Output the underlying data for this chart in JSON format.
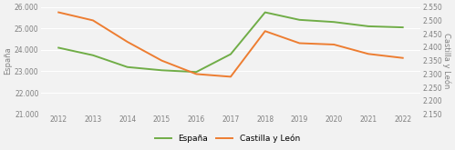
{
  "years": [
    2012,
    2013,
    2014,
    2015,
    2016,
    2017,
    2018,
    2019,
    2020,
    2021,
    2022
  ],
  "espana": [
    24100,
    23750,
    23200,
    23050,
    22970,
    23800,
    25750,
    25400,
    25300,
    25100,
    25050
  ],
  "castilla": [
    2530,
    2500,
    2420,
    2350,
    2300,
    2290,
    2460,
    2415,
    2410,
    2375,
    2360
  ],
  "espana_color": "#70ad47",
  "castilla_color": "#ed7d31",
  "ylabel_left": "España",
  "ylabel_right": "Castilla y León",
  "ylim_left": [
    21000,
    26000
  ],
  "ylim_right": [
    2150,
    2550
  ],
  "yticks_left": [
    21000,
    22000,
    23000,
    24000,
    25000,
    26000
  ],
  "yticks_right": [
    2150,
    2200,
    2250,
    2300,
    2350,
    2400,
    2450,
    2500,
    2550
  ],
  "legend_espana": "España",
  "legend_castilla": "Castilla y León",
  "bg_color": "#f2f2f2",
  "line_width": 1.4
}
